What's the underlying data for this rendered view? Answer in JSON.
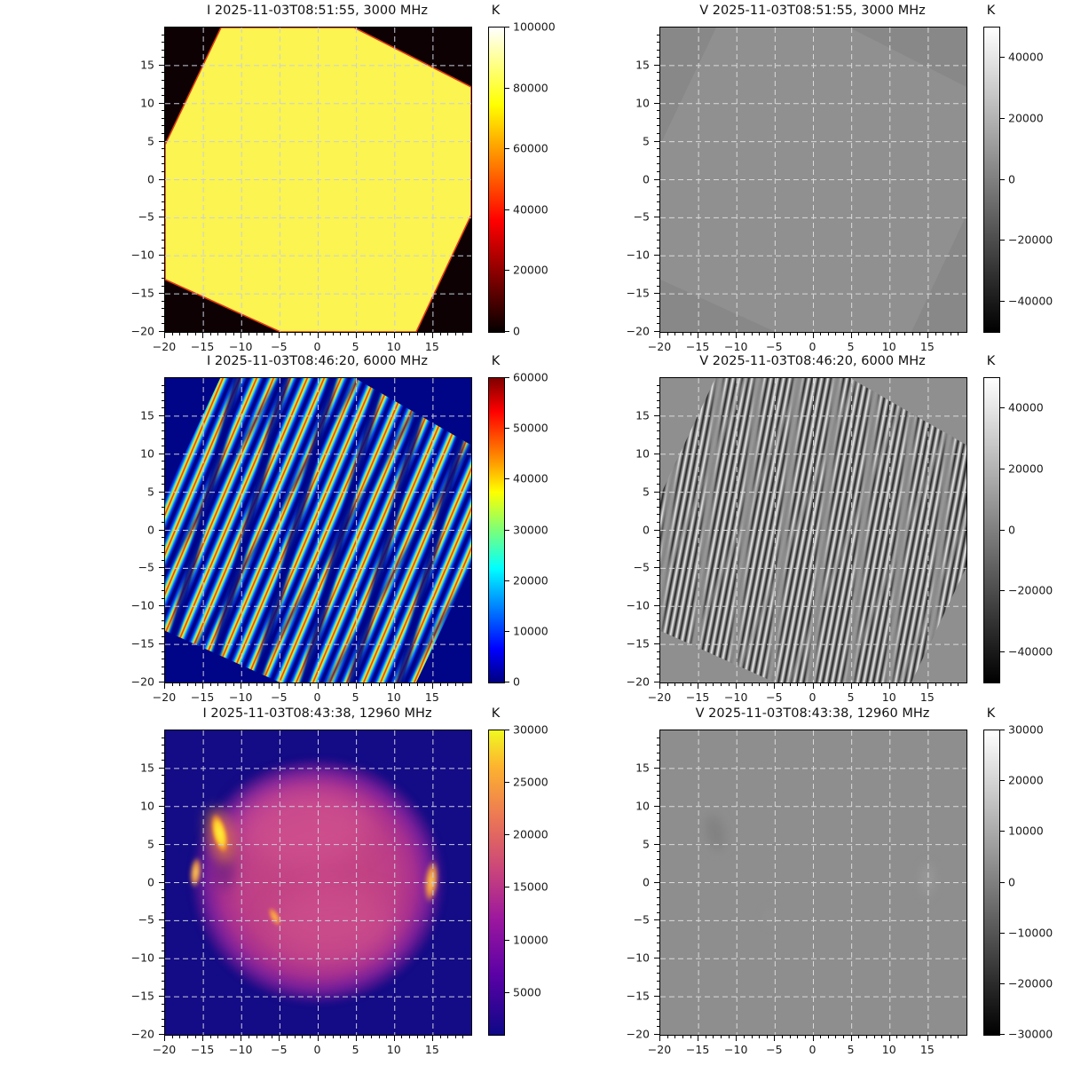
{
  "figure": {
    "background": "#ffffff",
    "kind": "3x2 grid of solar radio interferometric images, Stokes I (left column) and Stokes V (right column)"
  },
  "axes": {
    "x_range": [
      -20,
      20
    ],
    "y_range": [
      -20,
      20
    ],
    "x_tick_values": [
      -20,
      -15,
      -10,
      -5,
      0,
      5,
      10,
      15
    ],
    "x_tick_labels": [
      "−20",
      "−15",
      "−10",
      "−5",
      "0",
      "5",
      "10",
      "15"
    ],
    "y_tick_values": [
      -20,
      -15,
      -10,
      -5,
      0,
      5,
      10,
      15
    ],
    "y_tick_labels": [
      "−20",
      "−15",
      "−10",
      "−5",
      "0",
      "5",
      "10",
      "15"
    ],
    "minor_tick_step": 1,
    "grid": "dashed major gridlines"
  },
  "chart_data": [
    {
      "type": "heatmap",
      "title": "I 2025-11-03T08:51:55, 3000 MHz",
      "stokes": "I",
      "timestamp": "2025-11-03T08:51:55",
      "frequency_mhz": 3000,
      "colormap": "hot",
      "colorbar": {
        "unit": "K",
        "min": 0,
        "max": 100000,
        "tick_values": [
          0,
          20000,
          40000,
          60000,
          80000,
          100000
        ],
        "tick_labels": [
          "0",
          "20000",
          "40000",
          "60000",
          "80000",
          "100000"
        ]
      },
      "content": "Flat ~80000 K bright-yellow octagonal field of view (rotated ~20 deg) with thin red rim on black ~0 K background"
    },
    {
      "type": "heatmap",
      "title": "V 2025-11-03T08:51:55, 3000 MHz",
      "stokes": "V",
      "timestamp": "2025-11-03T08:51:55",
      "frequency_mhz": 3000,
      "colormap": "gray",
      "colorbar": {
        "unit": "K",
        "min": -50000,
        "max": 50000,
        "tick_values": [
          40000,
          20000,
          0,
          -20000,
          -40000
        ],
        "tick_labels": [
          "40000",
          "20000",
          "0",
          "−20000",
          "−40000"
        ]
      },
      "content": "Near-uniform mid-gray (~0 K) field with only a faint outline of the octagonal field of view"
    },
    {
      "type": "heatmap",
      "title": "I 2025-11-03T08:46:20, 6000 MHz",
      "stokes": "I",
      "timestamp": "2025-11-03T08:46:20",
      "frequency_mhz": 6000,
      "colormap": "jet",
      "colorbar": {
        "unit": "K",
        "min": 0,
        "max": 60000,
        "tick_values": [
          0,
          10000,
          20000,
          30000,
          40000,
          50000,
          60000
        ],
        "tick_labels": [
          "0",
          "10000",
          "20000",
          "30000",
          "40000",
          "50000",
          "60000"
        ]
      },
      "content": "Dense diagonal interference fringes (blue/cyan/yellow/red, 0-60000 K) filling the octagonal FOV on a dark navy background"
    },
    {
      "type": "heatmap",
      "title": "V 2025-11-03T08:46:20, 6000 MHz",
      "stokes": "V",
      "timestamp": "2025-11-03T08:46:20",
      "frequency_mhz": 6000,
      "colormap": "gray",
      "colorbar": {
        "unit": "K",
        "min": -50000,
        "max": 50000,
        "tick_values": [
          40000,
          20000,
          0,
          -20000,
          -40000
        ],
        "tick_labels": [
          "40000",
          "20000",
          "0",
          "−20000",
          "−40000"
        ]
      },
      "content": "Steep black/white diagonal fringe pattern (about ±50000 K) inside the octagonal FOV on a mid-gray background"
    },
    {
      "type": "heatmap",
      "title": "I 2025-11-03T08:43:38, 12960 MHz",
      "stokes": "I",
      "timestamp": "2025-11-03T08:43:38",
      "frequency_mhz": 12960,
      "colormap": "plasma",
      "colorbar": {
        "unit": "K",
        "min": 1000,
        "max": 30000,
        "tick_values": [
          5000,
          10000,
          15000,
          20000,
          25000,
          30000
        ],
        "tick_labels": [
          "5000",
          "10000",
          "15000",
          "20000",
          "25000",
          "30000"
        ]
      },
      "content": "Magenta-pink solar disk (~10000 K, radius ~16 units) on dark blue sky",
      "features": [
        {
          "name": "solar-disk",
          "x": 0,
          "y": 0,
          "radius": 16,
          "approx_value_k": 10000
        },
        {
          "name": "bright-active-region",
          "x": -13,
          "y": 7,
          "approx_value_k": 30000
        },
        {
          "name": "east-limb-brightening",
          "x": -15.5,
          "y": 1,
          "approx_value_k": 20000
        },
        {
          "name": "west-limb-active-region",
          "x": 15,
          "y": 0,
          "approx_value_k": 25000
        },
        {
          "name": "small-bright-point",
          "x": -5.5,
          "y": -4.5,
          "approx_value_k": 18000
        }
      ]
    },
    {
      "type": "heatmap",
      "title": "V 2025-11-03T08:43:38, 12960 MHz",
      "stokes": "V",
      "timestamp": "2025-11-03T08:43:38",
      "frequency_mhz": 12960,
      "colormap": "gray",
      "colorbar": {
        "unit": "K",
        "min": -30000,
        "max": 30000,
        "tick_values": [
          30000,
          20000,
          10000,
          0,
          -10000,
          -20000,
          -30000
        ],
        "tick_labels": [
          "30000",
          "20000",
          "10000",
          "0",
          "−10000",
          "−20000",
          "−30000"
        ]
      },
      "content": "Near-uniform mid-gray (~0 K) field with very faint residual smudges at the active-region locations"
    }
  ]
}
